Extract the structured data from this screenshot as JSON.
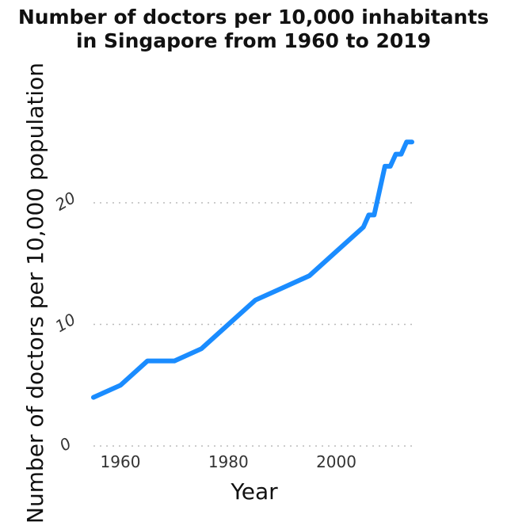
{
  "chart_data": {
    "type": "line",
    "title": "Number of doctors per 10,000 inhabitants in Singapore from 1960 to 2019",
    "title_lines": [
      "Number of doctors per 10,000 inhabitants",
      "in Singapore from 1960 to 2019"
    ],
    "xlabel": "Year",
    "ylabel": "Number of doctors per 10,000 population",
    "xlim": [
      1960,
      2019
    ],
    "ylim": [
      0,
      25
    ],
    "x_ticks": [
      1960,
      1980,
      2000
    ],
    "y_ticks": [
      0,
      10,
      20
    ],
    "grid": "horizontal dotted",
    "legend": "none",
    "series": [
      {
        "color": "#1a8cff",
        "x": [
          1960,
          1965,
          1970,
          1975,
          1980,
          1985,
          1990,
          1995,
          2000,
          2005,
          2010,
          2011,
          2012,
          2013,
          2014,
          2015,
          2016,
          2017,
          2018,
          2019
        ],
        "y": [
          4,
          5,
          7,
          7,
          8,
          10,
          12,
          13,
          14,
          16,
          18,
          19,
          19,
          21,
          23,
          23,
          24,
          24,
          25,
          25
        ]
      }
    ]
  }
}
